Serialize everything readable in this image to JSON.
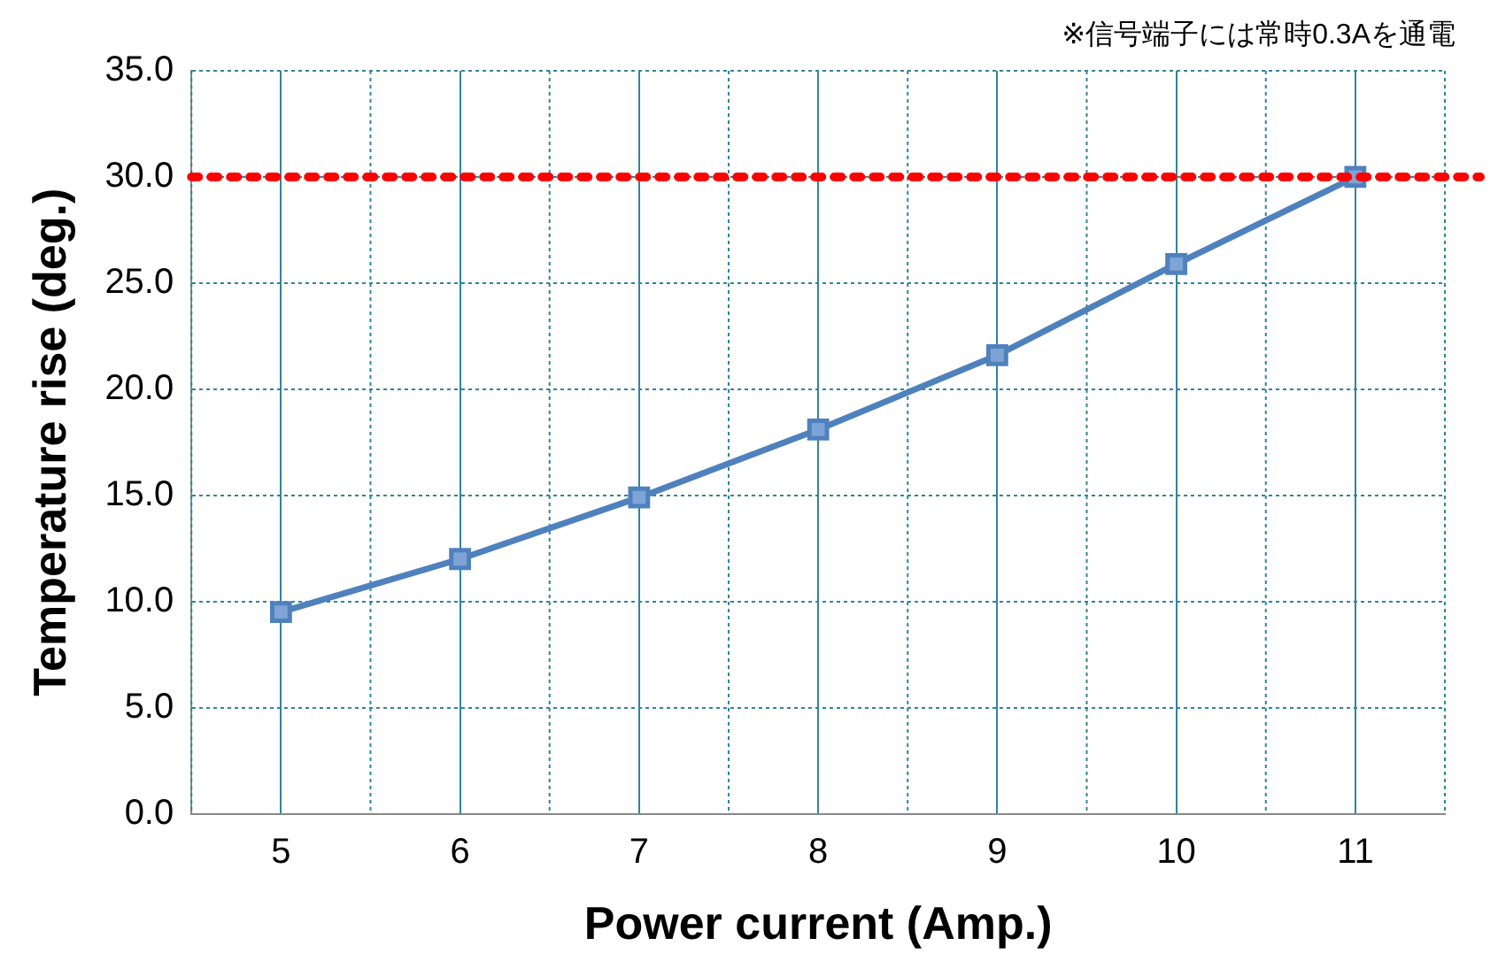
{
  "chart_data": {
    "type": "line",
    "xlabel": "Power current (Amp.)",
    "ylabel": "Temperature rise (deg.)",
    "annotations": [
      "※信号端子には常時0.3Aを通電"
    ],
    "categories": [
      "5",
      "6",
      "7",
      "8",
      "9",
      "10",
      "11"
    ],
    "series": [
      {
        "color": "#4f81bd",
        "values": [
          9.5,
          12.0,
          14.9,
          18.1,
          21.6,
          25.9,
          30.0
        ]
      }
    ],
    "ylim": [
      0,
      35
    ],
    "yticks": [
      {
        "value": 0,
        "label": "0.0"
      },
      {
        "value": 5,
        "label": "5.0"
      },
      {
        "value": 10,
        "label": "10.0"
      },
      {
        "value": 15,
        "label": "15.0"
      },
      {
        "value": 20,
        "label": "20.0"
      },
      {
        "value": 25,
        "label": "25.0"
      },
      {
        "value": 30,
        "label": "30.0"
      },
      {
        "value": 35,
        "label": "35.0"
      }
    ],
    "ref_lines": [
      {
        "axis": "y",
        "value": 30,
        "color": "#ff0000",
        "line_style": "dotted"
      }
    ],
    "grid": true,
    "legend": false,
    "marker": "square",
    "line_style": "solid"
  }
}
